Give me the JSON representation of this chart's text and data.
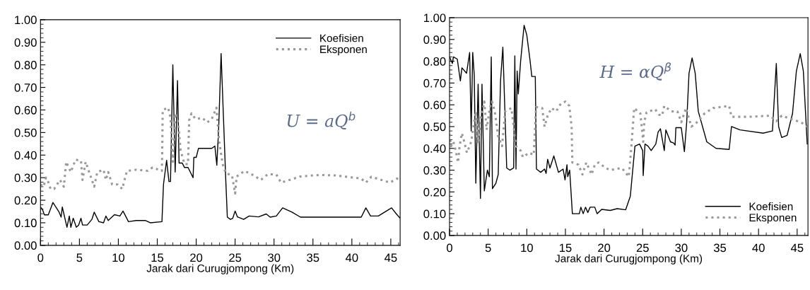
{
  "chart_data": [
    {
      "type": "line",
      "xlabel": "Jarak dari Curugjompong (Km)",
      "annotations": [
        "U = aQ$^{b}$"
      ],
      "legend": "top right",
      "grid": false,
      "xlim": [
        0,
        46.2
      ],
      "xticks": [
        0,
        5,
        10,
        15,
        20,
        25,
        30,
        35,
        40,
        45
      ],
      "ylim": [
        0,
        1
      ],
      "yticks": [
        {
          "value": 0,
          "label": "0.00"
        },
        {
          "value": 0.1,
          "label": "0.10"
        },
        {
          "value": 0.2,
          "label": "0.20"
        },
        {
          "value": 0.3,
          "label": "0.30"
        },
        {
          "value": 0.4,
          "label": "0.40"
        },
        {
          "value": 0.5,
          "label": "0.50"
        },
        {
          "value": 0.6,
          "label": "0.60"
        },
        {
          "value": 0.7,
          "label": "0.70"
        },
        {
          "value": 0.8,
          "label": "0.80"
        },
        {
          "value": 0.9,
          "label": "0.90"
        },
        {
          "value": 1,
          "label": "1.00"
        }
      ],
      "series": [
        {
          "name": "Koefisien",
          "color": "#000000",
          "line_style": "solid",
          "x": [
            0,
            0.24,
            0.5,
            1.0,
            1.6,
            2.35,
            2.65,
            2.8,
            3.1,
            3.4,
            3.7,
            3.9,
            4.2,
            4.6,
            4.9,
            5.2,
            5.4,
            6.0,
            6.6,
            6.9,
            7.5,
            8.1,
            8.4,
            8.7,
            9.5,
            10.2,
            10.6,
            11.3,
            12.3,
            13.5,
            14.1,
            15.6,
            15.8,
            16.2,
            16.5,
            16.7,
            17.0,
            17.3,
            17.6,
            17.8,
            18.2,
            18.5,
            18.95,
            19.4,
            19.6,
            19.7,
            20.0,
            20.3,
            22.0,
            22.4,
            22.65,
            22.9,
            23.2,
            23.5,
            23.8,
            24.0,
            24.4,
            24.7,
            25.0,
            25.3,
            26.1,
            26.8,
            28.0,
            29.0,
            29.5,
            30.3,
            31.1,
            32.3,
            33.4,
            41.2,
            41.8,
            42.4,
            43.4,
            45.1,
            45.7,
            46.2
          ],
          "values": [
            0.17,
            0.16,
            0.135,
            0.135,
            0.19,
            0.15,
            0.125,
            0.17,
            0.125,
            0.08,
            0.13,
            0.08,
            0.12,
            0.08,
            0.09,
            0.12,
            0.09,
            0.09,
            0.115,
            0.147,
            0.105,
            0.1,
            0.13,
            0.11,
            0.136,
            0.13,
            0.152,
            0.105,
            0.11,
            0.11,
            0.1,
            0.105,
            0.27,
            0.377,
            0.283,
            0.283,
            0.8,
            0.325,
            0.73,
            0.365,
            0.365,
            0.345,
            0.345,
            0.314,
            0.3,
            0.39,
            0.39,
            0.43,
            0.43,
            0.44,
            0.355,
            0.53,
            0.85,
            0.57,
            0.29,
            0.125,
            0.115,
            0.12,
            0.152,
            0.126,
            0.115,
            0.13,
            0.126,
            0.139,
            0.125,
            0.13,
            0.166,
            0.147,
            0.125,
            0.125,
            0.166,
            0.13,
            0.13,
            0.166,
            0.14,
            0.12
          ]
        },
        {
          "name": "Eksponen",
          "color": "#999999",
          "line_style": "dotted",
          "x": [
            0,
            0.4,
            0.7,
            1.0,
            1.3,
            1.75,
            2.5,
            3.0,
            3.3,
            3.9,
            4.5,
            5.2,
            5.4,
            5.8,
            6.4,
            6.9,
            7.3,
            8.1,
            8.4,
            8.7,
            9.2,
            9.9,
            10.5,
            11.1,
            12.3,
            13.8,
            14.4,
            15.6,
            15.7,
            16.4,
            16.7,
            17.0,
            17.3,
            17.6,
            17.8,
            18.0,
            18.5,
            18.95,
            19.1,
            19.4,
            19.9,
            20.8,
            21.4,
            22.0,
            22.6,
            22.95,
            23.4,
            23.8,
            24.6,
            25.0,
            25.2,
            26.2,
            27.4,
            28.3,
            29.2,
            30.3,
            30.9,
            33.4,
            35.8,
            37.9,
            41.2,
            41.8,
            42.5,
            44.9,
            45.8,
            46.2
          ],
          "values": [
            0.27,
            0.26,
            0.3,
            0.28,
            0.25,
            0.25,
            0.29,
            0.26,
            0.37,
            0.325,
            0.38,
            0.375,
            0.29,
            0.37,
            0.31,
            0.26,
            0.325,
            0.335,
            0.29,
            0.325,
            0.27,
            0.27,
            0.25,
            0.33,
            0.335,
            0.33,
            0.345,
            0.33,
            0.6,
            0.61,
            0.565,
            0.37,
            0.585,
            0.555,
            0.5,
            0.42,
            0.36,
            0.36,
            0.555,
            0.585,
            0.56,
            0.565,
            0.545,
            0.56,
            0.61,
            0.46,
            0.36,
            0.32,
            0.31,
            0.23,
            0.305,
            0.33,
            0.31,
            0.29,
            0.315,
            0.314,
            0.278,
            0.305,
            0.312,
            0.31,
            0.296,
            0.278,
            0.304,
            0.278,
            0.296,
            0.29
          ]
        }
      ]
    },
    {
      "type": "line",
      "xlabel": "Jarak dari Curugjompong (Km)",
      "annotations": [
        "H = αQ$^{β}$"
      ],
      "legend": "bottom right",
      "grid": false,
      "xlim": [
        0,
        46.4
      ],
      "xticks": [
        0,
        5,
        10,
        15,
        20,
        25,
        30,
        35,
        40,
        45
      ],
      "ylim": [
        0,
        1
      ],
      "yticks": [
        {
          "value": 0,
          "label": "0.00"
        },
        {
          "value": 0.1,
          "label": "0.10"
        },
        {
          "value": 0.2,
          "label": "0.20"
        },
        {
          "value": 0.3,
          "label": "0.30"
        },
        {
          "value": 0.4,
          "label": "0.40"
        },
        {
          "value": 0.5,
          "label": "0.50"
        },
        {
          "value": 0.6,
          "label": "0.60"
        },
        {
          "value": 0.7,
          "label": "0.70"
        },
        {
          "value": 0.8,
          "label": "0.80"
        },
        {
          "value": 0.9,
          "label": "0.90"
        },
        {
          "value": 1,
          "label": "1.00"
        }
      ],
      "series": [
        {
          "name": "Koefisien",
          "color": "#000000",
          "line_style": "solid",
          "x": [
            0,
            0.37,
            0.5,
            1.0,
            1.4,
            1.6,
            2.2,
            2.6,
            2.8,
            3.0,
            3.2,
            3.4,
            3.7,
            4.0,
            4.2,
            4.5,
            4.9,
            5.15,
            5.4,
            5.55,
            6.0,
            6.3,
            6.6,
            6.9,
            7.4,
            7.8,
            8.3,
            8.45,
            8.6,
            8.75,
            8.9,
            9.2,
            9.65,
            10.0,
            10.4,
            10.65,
            11.1,
            11.25,
            11.8,
            12.3,
            12.5,
            12.7,
            13.0,
            13.5,
            14.1,
            14.7,
            14.95,
            15.2,
            15.3,
            15.55,
            15.9,
            16.8,
            17.0,
            17.3,
            17.6,
            17.9,
            18.2,
            18.8,
            19.1,
            19.7,
            20.8,
            21.7,
            22.8,
            23.4,
            24.0,
            24.6,
            25.0,
            25.07,
            25.3,
            25.7,
            26.1,
            26.7,
            27.0,
            27.3,
            27.8,
            28.0,
            28.6,
            29.0,
            29.2,
            29.3,
            30.0,
            30.4,
            30.7,
            31.0,
            31.4,
            31.8,
            32.2,
            33.3,
            34.5,
            36.2,
            36.5,
            37.6,
            40.6,
            41.8,
            42.3,
            42.6,
            43.0,
            43.7,
            44.4,
            44.9,
            45.4,
            45.8,
            46.3
          ],
          "values": [
            0.82,
            0.79,
            0.82,
            0.81,
            0.71,
            0.77,
            0.745,
            0.84,
            0.48,
            0.84,
            0.735,
            0.24,
            0.695,
            0.17,
            0.695,
            0.205,
            0.3,
            0.27,
            0.82,
            0.215,
            0.24,
            0.28,
            0.71,
            0.865,
            0.31,
            0.3,
            0.31,
            0.825,
            0.305,
            0.755,
            0.65,
            0.8,
            0.965,
            0.92,
            0.81,
            0.73,
            0.73,
            0.305,
            0.29,
            0.305,
            0.285,
            0.35,
            0.31,
            0.365,
            0.29,
            0.305,
            0.255,
            0.325,
            0.27,
            0.3,
            0.1,
            0.1,
            0.13,
            0.1,
            0.13,
            0.105,
            0.13,
            0.13,
            0.1,
            0.12,
            0.115,
            0.123,
            0.118,
            0.18,
            0.41,
            0.42,
            0.39,
            0.275,
            0.42,
            0.41,
            0.39,
            0.42,
            0.475,
            0.49,
            0.39,
            0.485,
            0.43,
            0.425,
            0.415,
            0.495,
            0.495,
            0.385,
            0.52,
            0.745,
            0.815,
            0.745,
            0.57,
            0.43,
            0.4,
            0.395,
            0.5,
            0.485,
            0.47,
            0.48,
            0.79,
            0.5,
            0.45,
            0.46,
            0.56,
            0.755,
            0.835,
            0.755,
            0.42
          ]
        },
        {
          "name": "Eksponen",
          "color": "#999999",
          "line_style": "dotted",
          "x": [
            0,
            0.2,
            0.5,
            0.8,
            1.1,
            1.3,
            1.6,
            1.9,
            2.25,
            2.8,
            3.1,
            3.4,
            3.7,
            4.0,
            4.5,
            4.8,
            5.2,
            5.5,
            5.85,
            6.3,
            6.8,
            7.2,
            8.0,
            8.3,
            8.6,
            9.2,
            9.5,
            10.3,
            10.9,
            11.2,
            12.0,
            12.3,
            12.7,
            13.2,
            13.8,
            14.4,
            15.0,
            15.5,
            15.8,
            15.9,
            16.7,
            17.2,
            17.7,
            18.4,
            18.8,
            19.3,
            20.2,
            20.8,
            22.3,
            23.2,
            23.5,
            23.9,
            24.7,
            25.07,
            25.2,
            25.5,
            26.6,
            27.1,
            27.5,
            27.8,
            28.7,
            29.5,
            30.0,
            30.6,
            31.3,
            31.9,
            33.0,
            34.1,
            36.2,
            36.5,
            38.8,
            41.5,
            42.3,
            43.0,
            44.6,
            45.5,
            46.3
          ],
          "values": [
            0.465,
            0.41,
            0.43,
            0.39,
            0.335,
            0.41,
            0.47,
            0.43,
            0.38,
            0.43,
            0.5,
            0.57,
            0.42,
            0.53,
            0.615,
            0.485,
            0.585,
            0.615,
            0.57,
            0.455,
            0.41,
            0.57,
            0.585,
            0.5,
            0.41,
            0.39,
            0.36,
            0.38,
            0.37,
            0.59,
            0.585,
            0.5,
            0.55,
            0.585,
            0.57,
            0.605,
            0.615,
            0.595,
            0.5,
            0.335,
            0.325,
            0.28,
            0.335,
            0.28,
            0.325,
            0.335,
            0.31,
            0.3,
            0.31,
            0.27,
            0.39,
            0.585,
            0.56,
            0.43,
            0.52,
            0.565,
            0.58,
            0.555,
            0.55,
            0.595,
            0.57,
            0.57,
            0.52,
            0.585,
            0.5,
            0.515,
            0.56,
            0.585,
            0.595,
            0.545,
            0.545,
            0.55,
            0.525,
            0.55,
            0.53,
            0.52,
            0.5
          ]
        }
      ]
    }
  ]
}
